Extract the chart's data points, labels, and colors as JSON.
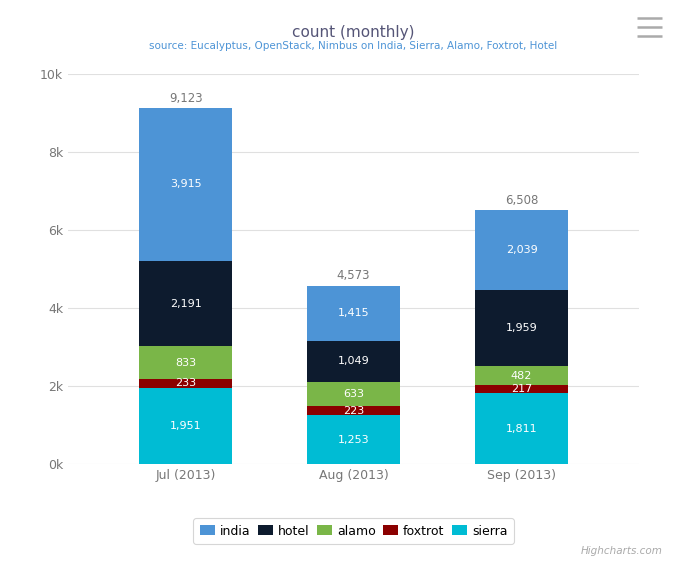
{
  "title": "count (monthly)",
  "subtitle": "source: Eucalyptus, OpenStack, Nimbus on India, Sierra, Alamo, Foxtrot, Hotel",
  "categories": [
    "Jul (2013)",
    "Aug (2013)",
    "Sep (2013)"
  ],
  "series": {
    "sierra": [
      1951,
      1253,
      1811
    ],
    "foxtrot": [
      233,
      223,
      217
    ],
    "alamo": [
      833,
      633,
      482
    ],
    "hotel": [
      2191,
      1049,
      1959
    ],
    "india": [
      3915,
      1415,
      2039
    ]
  },
  "totals": [
    9123,
    4573,
    6508
  ],
  "colors": {
    "india": "#4d94d6",
    "hotel": "#0d1b2e",
    "alamo": "#7ab648",
    "foxtrot": "#8b0000",
    "sierra": "#00bcd4"
  },
  "ylim": [
    0,
    10000
  ],
  "yticks": [
    0,
    2000,
    4000,
    6000,
    8000,
    10000
  ],
  "ytick_labels": [
    "0k",
    "2k",
    "4k",
    "6k",
    "8k",
    "10k"
  ],
  "background_color": "#ffffff",
  "plot_bg_color": "#ffffff",
  "grid_color": "#e0e0e0",
  "title_color": "#555577",
  "subtitle_color": "#4d94d6",
  "bar_width": 0.55,
  "stack_order": [
    "sierra",
    "foxtrot",
    "alamo",
    "hotel",
    "india"
  ],
  "legend_order": [
    "india",
    "hotel",
    "alamo",
    "foxtrot",
    "sierra"
  ],
  "legend_labels": [
    "india",
    "hotel",
    "alamo",
    "foxtrot",
    "sierra"
  ],
  "highcharts_label": "Highcharts.com"
}
